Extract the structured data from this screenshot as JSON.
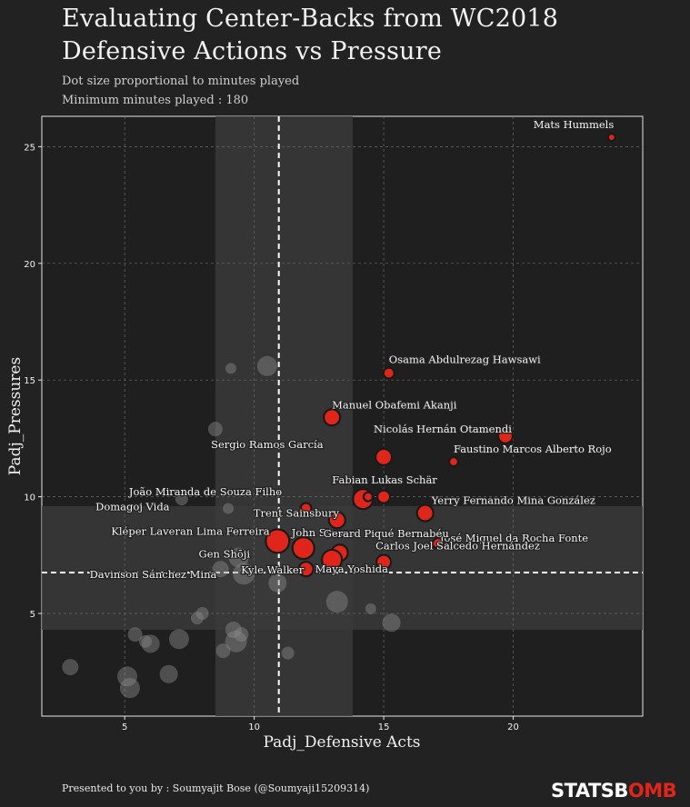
{
  "header": {
    "title_line1": "Evaluating Center-Backs from WC2018",
    "title_line2": "Defensive Actions vs Pressure",
    "subtitle_line1": "Dot size proportional to minutes played",
    "subtitle_line2": "Minimum minutes played : 180"
  },
  "footer": {
    "credit": "Presented to you by : Soumyajit Bose (@Soumyaji15209314)",
    "logo_part1": "STATSB",
    "logo_part2": "OMB"
  },
  "colors": {
    "background": "#222222",
    "highlight": "#e0251b",
    "other": "#8a8a8a"
  },
  "chart_data": {
    "type": "scatter",
    "xlabel": "Padj_Defensive Acts",
    "ylabel": "Padj_Pressures",
    "xlim": [
      1.8,
      25.0
    ],
    "ylim": [
      0.6,
      26.3
    ],
    "xticks": [
      5,
      10,
      15,
      20
    ],
    "yticks": [
      5,
      10,
      15,
      20,
      25
    ],
    "grid": true,
    "mean_x": 10.95,
    "mean_y": 6.75,
    "band_x": [
      8.5,
      13.8
    ],
    "band_y": [
      4.3,
      9.6
    ],
    "highlighted": [
      {
        "name": "Mats Hummels",
        "x": 23.8,
        "y": 25.4,
        "size": 4
      },
      {
        "name": "Osama Abdulrezag Hawsawi",
        "x": 15.2,
        "y": 15.3,
        "size": 6
      },
      {
        "name": "Manuel Obafemi Akanji",
        "x": 13.0,
        "y": 13.4,
        "size": 9
      },
      {
        "name": "Nicolás Hernán Otamendi",
        "x": 19.7,
        "y": 12.6,
        "size": 8
      },
      {
        "name": "Faustino Marcos Alberto Rojo",
        "x": 17.7,
        "y": 11.5,
        "size": 5
      },
      {
        "name": "Sergio Ramos García",
        "x": 15.0,
        "y": 11.7,
        "size": 9
      },
      {
        "name": "Fabian Lukas Schär",
        "x": 14.2,
        "y": 9.9,
        "size": 11
      },
      {
        "name": "",
        "x": 15.0,
        "y": 10.0,
        "size": 7
      },
      {
        "name": "",
        "x": 14.4,
        "y": 10.0,
        "size": 5
      },
      {
        "name": "Yerry Fernando Mina González",
        "x": 16.6,
        "y": 9.3,
        "size": 9
      },
      {
        "name": "José Miguel da Rocha Fonte",
        "x": 17.1,
        "y": 8.0,
        "size": 6
      },
      {
        "name": "Trent Sainsbury",
        "x": 13.2,
        "y": 9.0,
        "size": 9
      },
      {
        "name": "",
        "x": 12.0,
        "y": 9.5,
        "size": 6
      },
      {
        "name": "Kléper Laveran Lima Ferreira",
        "x": 10.9,
        "y": 8.1,
        "size": 13
      },
      {
        "name": "John Stones",
        "x": 11.9,
        "y": 7.8,
        "size": 12
      },
      {
        "name": "Gerard Piqué Bernabéu",
        "x": 13.3,
        "y": 7.6,
        "size": 9
      },
      {
        "name": "Carlos Joel Salcedo Hernández",
        "x": 15.0,
        "y": 7.2,
        "size": 8
      },
      {
        "name": "Kyle Walker",
        "x": 13.0,
        "y": 7.3,
        "size": 11
      },
      {
        "name": "Maya Yoshida",
        "x": 12.0,
        "y": 6.9,
        "size": 8
      }
    ],
    "others": [
      {
        "name": "João Miranda de Souza Filho",
        "x": 7.2,
        "y": 9.9,
        "size": 7
      },
      {
        "name": "Domagoj Vida",
        "x": 9.0,
        "y": 9.5,
        "size": 6
      },
      {
        "name": "Gen Shōji",
        "x": 9.4,
        "y": 7.4,
        "size": 11
      },
      {
        "name": "Davinson Sánchez Mina",
        "x": 8.7,
        "y": 6.9,
        "size": 9
      },
      {
        "name": "",
        "x": 10.5,
        "y": 15.6,
        "size": 11
      },
      {
        "name": "",
        "x": 9.1,
        "y": 15.5,
        "size": 6
      },
      {
        "name": "",
        "x": 8.5,
        "y": 12.9,
        "size": 8
      },
      {
        "name": "",
        "x": 9.6,
        "y": 6.7,
        "size": 12
      },
      {
        "name": "",
        "x": 10.9,
        "y": 6.3,
        "size": 10
      },
      {
        "name": "",
        "x": 13.2,
        "y": 5.5,
        "size": 12
      },
      {
        "name": "",
        "x": 14.5,
        "y": 5.2,
        "size": 6
      },
      {
        "name": "",
        "x": 15.3,
        "y": 4.6,
        "size": 10
      },
      {
        "name": "",
        "x": 8.0,
        "y": 5.0,
        "size": 7
      },
      {
        "name": "",
        "x": 7.8,
        "y": 4.8,
        "size": 7
      },
      {
        "name": "",
        "x": 9.2,
        "y": 4.3,
        "size": 9
      },
      {
        "name": "",
        "x": 9.5,
        "y": 4.1,
        "size": 8
      },
      {
        "name": "",
        "x": 9.3,
        "y": 3.8,
        "size": 12
      },
      {
        "name": "",
        "x": 7.1,
        "y": 3.9,
        "size": 11
      },
      {
        "name": "",
        "x": 6.0,
        "y": 3.7,
        "size": 10
      },
      {
        "name": "",
        "x": 5.4,
        "y": 4.1,
        "size": 8
      },
      {
        "name": "",
        "x": 5.8,
        "y": 3.8,
        "size": 7
      },
      {
        "name": "",
        "x": 8.8,
        "y": 3.4,
        "size": 8
      },
      {
        "name": "",
        "x": 11.3,
        "y": 3.3,
        "size": 7
      },
      {
        "name": "",
        "x": 2.9,
        "y": 2.7,
        "size": 9
      },
      {
        "name": "",
        "x": 5.1,
        "y": 2.3,
        "size": 11
      },
      {
        "name": "",
        "x": 5.2,
        "y": 1.8,
        "size": 11
      },
      {
        "name": "",
        "x": 6.7,
        "y": 2.4,
        "size": 10
      }
    ]
  }
}
